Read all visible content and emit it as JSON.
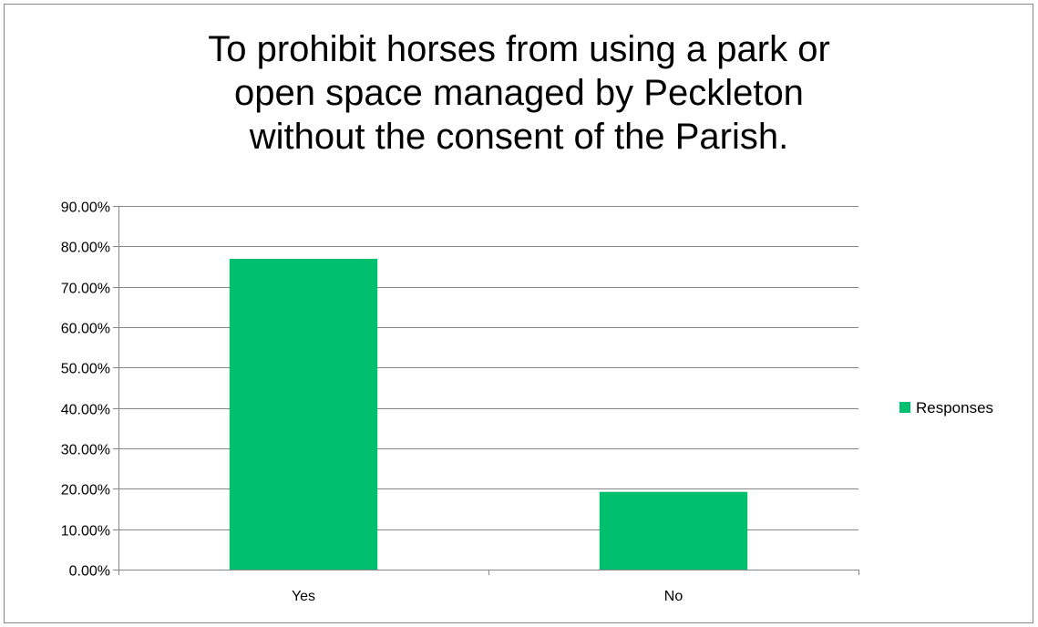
{
  "chart_data": {
    "type": "bar",
    "title": "To prohibit horses from using a park or\nopen space managed by Peckleton\nwithout the consent of the Parish.",
    "categories": [
      "Yes",
      "No"
    ],
    "series": [
      {
        "name": "Responses",
        "values": [
          0.7692,
          0.1923
        ],
        "color": "#00BF6F"
      }
    ],
    "ylim": [
      0,
      0.9
    ],
    "yticks": [
      0,
      0.1,
      0.2,
      0.3,
      0.4,
      0.5,
      0.6,
      0.7,
      0.8,
      0.9
    ],
    "ytick_labels": [
      "0.00%",
      "10.00%",
      "20.00%",
      "30.00%",
      "40.00%",
      "50.00%",
      "60.00%",
      "70.00%",
      "80.00%",
      "90.00%"
    ],
    "grid": true,
    "legend": "right",
    "xlabel": "",
    "ylabel": ""
  }
}
